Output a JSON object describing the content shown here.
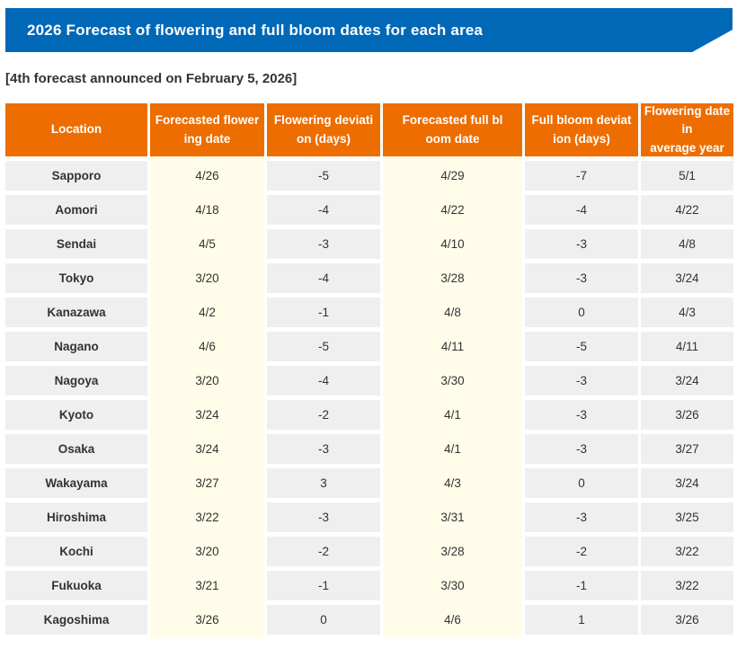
{
  "banner": {
    "title": "2026 Forecast of flowering and full bloom dates for each area",
    "bg_color": "#0068B7"
  },
  "subtitle": "[4th forecast announced on February 5, 2026]",
  "table": {
    "header_bg_color": "#ED6D00",
    "highlight_column_color": "#FFFDE9",
    "cell_bg_color": "#EFEFEF",
    "text_color": "#333333",
    "columns": [
      {
        "key": "location",
        "label": "Location",
        "highlight": false
      },
      {
        "key": "forecasted-flowering-date",
        "label": "Forecasted flower\ning date",
        "highlight": true
      },
      {
        "key": "flowering-deviation-days",
        "label": "Flowering deviati\non (days)",
        "highlight": false
      },
      {
        "key": "forecasted-full-bloom-date",
        "label": "Forecasted full bl\noom date",
        "highlight": true
      },
      {
        "key": "full-bloom-deviation-days",
        "label": "Full bloom deviat\nion (days)",
        "highlight": false
      },
      {
        "key": "flowering-date-in-average-year",
        "label": "Flowering date in\naverage year",
        "highlight": false
      }
    ],
    "rows": [
      {
        "location": "Sapporo",
        "values": [
          "4/26",
          "-5",
          "4/29",
          "-7",
          "5/1"
        ]
      },
      {
        "location": "Aomori",
        "values": [
          "4/18",
          "-4",
          "4/22",
          "-4",
          "4/22"
        ]
      },
      {
        "location": "Sendai",
        "values": [
          "4/5",
          "-3",
          "4/10",
          "-3",
          "4/8"
        ]
      },
      {
        "location": "Tokyo",
        "values": [
          "3/20",
          "-4",
          "3/28",
          "-3",
          "3/24"
        ]
      },
      {
        "location": "Kanazawa",
        "values": [
          "4/2",
          "-1",
          "4/8",
          "0",
          "4/3"
        ]
      },
      {
        "location": "Nagano",
        "values": [
          "4/6",
          "-5",
          "4/11",
          "-5",
          "4/11"
        ]
      },
      {
        "location": "Nagoya",
        "values": [
          "3/20",
          "-4",
          "3/30",
          "-3",
          "3/24"
        ]
      },
      {
        "location": "Kyoto",
        "values": [
          "3/24",
          "-2",
          "4/1",
          "-3",
          "3/26"
        ]
      },
      {
        "location": "Osaka",
        "values": [
          "3/24",
          "-3",
          "4/1",
          "-3",
          "3/27"
        ]
      },
      {
        "location": "Wakayama",
        "values": [
          "3/27",
          "3",
          "4/3",
          "0",
          "3/24"
        ]
      },
      {
        "location": "Hiroshima",
        "values": [
          "3/22",
          "-3",
          "3/31",
          "-3",
          "3/25"
        ]
      },
      {
        "location": "Kochi",
        "values": [
          "3/20",
          "-2",
          "3/28",
          "-2",
          "3/22"
        ]
      },
      {
        "location": "Fukuoka",
        "values": [
          "3/21",
          "-1",
          "3/30",
          "-1",
          "3/22"
        ]
      },
      {
        "location": "Kagoshima",
        "values": [
          "3/26",
          "0",
          "4/6",
          "1",
          "3/26"
        ]
      }
    ]
  }
}
